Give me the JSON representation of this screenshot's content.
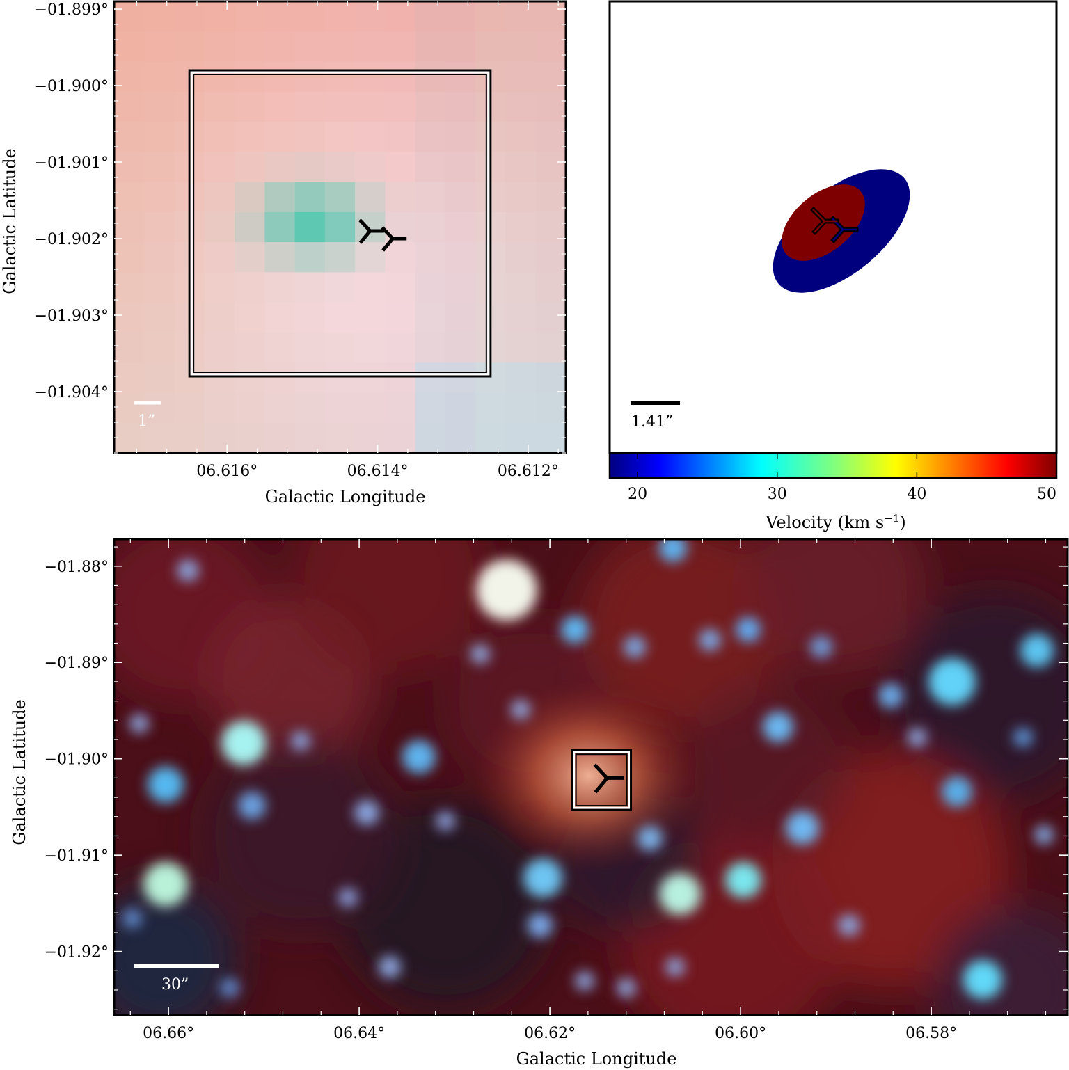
{
  "chart_data": [
    {
      "type": "heatmap",
      "panel": "top-left",
      "description": "RGB composite zoom",
      "xlabel": "Galactic Longitude",
      "ylabel": "Galactic Latitude",
      "xlim": [
        6.6175,
        6.6115
      ],
      "ylim": [
        -1.9048,
        -1.8989
      ],
      "xticks": [
        6.616,
        6.614,
        6.612
      ],
      "xtick_labels": [
        "06.616°",
        "06.614°",
        "06.612°"
      ],
      "yticks": [
        -1.899,
        -1.9,
        -1.901,
        -1.902,
        -1.903,
        -1.904
      ],
      "ytick_labels": [
        "−01.899°",
        "−01.900°",
        "−01.901°",
        "−01.902°",
        "−01.903°",
        "−01.904°"
      ],
      "scale_bar": "1”",
      "box": {
        "l_min": 6.6125,
        "l_max": 6.6165,
        "b_min": -1.9038,
        "b_max": -1.8998
      },
      "markers": [
        {
          "l": 6.6141,
          "b": -1.9019
        },
        {
          "l": 6.6138,
          "b": -1.902
        }
      ]
    },
    {
      "type": "scatter",
      "panel": "top-right",
      "description": "Velocity-coloured ellipses",
      "scale_bar": "1.41”",
      "colorbar": {
        "label": "Velocity (km s",
        "label_sup": "−1",
        "label_end": ")",
        "min": 18,
        "max": 50,
        "ticks": [
          20,
          30,
          40,
          50
        ],
        "tick_labels": [
          "20",
          "30",
          "40",
          "50"
        ]
      },
      "ellipses": [
        {
          "velocity": 20,
          "color": "#00007f"
        },
        {
          "velocity": 50,
          "color": "#7f0000"
        }
      ]
    },
    {
      "type": "heatmap",
      "panel": "bottom",
      "description": "Wide-field RGB composite",
      "xlabel": "Galactic Longitude",
      "ylabel": "Galactic Latitude",
      "xlim": [
        6.6657,
        6.5657
      ],
      "ylim": [
        -1.9266,
        -1.8772
      ],
      "xticks": [
        6.66,
        6.64,
        6.62,
        6.6,
        6.58
      ],
      "xtick_labels": [
        "06.66°",
        "06.64°",
        "06.62°",
        "06.60°",
        "06.58°"
      ],
      "yticks": [
        -1.88,
        -1.89,
        -1.9,
        -1.91,
        -1.92
      ],
      "ytick_labels": [
        "−01.88°",
        "−01.89°",
        "−01.90°",
        "−01.91°",
        "−01.92°"
      ],
      "scale_bar": "30”",
      "box": {
        "l_min": 6.6115,
        "l_max": 6.6177,
        "b_min": -1.9053,
        "b_max": -1.8991
      },
      "markers": [
        {
          "l": 6.614,
          "b": -1.902
        }
      ]
    }
  ]
}
